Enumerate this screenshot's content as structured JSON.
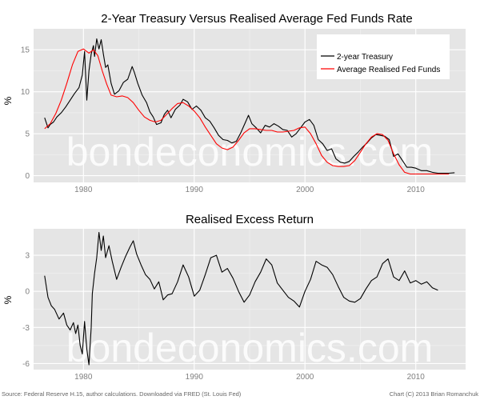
{
  "watermark": "bondeconomics.com",
  "footer": {
    "source": "Source: Federal Reserve H.15, author calculations. Downloaded via FRED (St. Louis Fed)",
    "credit": "Chart (C) 2013 Brian Romanchuk"
  },
  "colors": {
    "panel_bg": "#e5e5e5",
    "grid_major": "#ffffff",
    "grid_minor": "#f2f2f2",
    "series_black": "#000000",
    "series_red": "#ff0000",
    "watermark": "#ffffff"
  },
  "chart_data": [
    {
      "type": "line",
      "title": "2-Year Treasury Versus Realised Average Fed Funds Rate",
      "xlabel": "",
      "ylabel": "%",
      "xlim": [
        1975.5,
        2014.5
      ],
      "ylim": [
        -0.8,
        17.5
      ],
      "x_ticks": [
        1980,
        1990,
        2000,
        2010
      ],
      "y_ticks": [
        0,
        5,
        10,
        15
      ],
      "grid": true,
      "legend_position": "top-right",
      "series": [
        {
          "name": "2-year Treasury",
          "color": "#000000",
          "x": [
            1976.5,
            1976.8,
            1977.0,
            1977.3,
            1977.6,
            1978.0,
            1978.4,
            1978.8,
            1979.2,
            1979.6,
            1979.9,
            1980.1,
            1980.3,
            1980.5,
            1980.7,
            1980.9,
            1981.0,
            1981.2,
            1981.4,
            1981.6,
            1981.8,
            1982.0,
            1982.2,
            1982.5,
            1982.8,
            1983.2,
            1983.6,
            1984.0,
            1984.4,
            1984.6,
            1984.9,
            1985.3,
            1985.7,
            1986.0,
            1986.3,
            1986.6,
            1987.0,
            1987.3,
            1987.6,
            1987.9,
            1988.3,
            1988.7,
            1989.0,
            1989.4,
            1989.8,
            1990.2,
            1990.6,
            1991.0,
            1991.4,
            1991.8,
            1992.2,
            1992.6,
            1993.0,
            1993.4,
            1993.8,
            1994.2,
            1994.6,
            1994.9,
            1995.2,
            1995.6,
            1996.0,
            1996.4,
            1996.8,
            1997.2,
            1997.6,
            1998.0,
            1998.4,
            1998.8,
            1999.2,
            1999.6,
            2000.0,
            2000.4,
            2000.8,
            2001.2,
            2001.6,
            2002.0,
            2002.4,
            2002.8,
            2003.2,
            2003.6,
            2004.0,
            2004.4,
            2004.8,
            2005.2,
            2005.6,
            2006.0,
            2006.4,
            2006.8,
            2007.2,
            2007.6,
            2008.0,
            2008.4,
            2008.8,
            2009.2,
            2009.6,
            2010.0,
            2010.5,
            2011.0,
            2011.5,
            2012.0,
            2012.5,
            2013.0,
            2013.5
          ],
          "y": [
            6.9,
            5.7,
            6.1,
            6.4,
            7.0,
            7.5,
            8.2,
            9.0,
            9.8,
            10.5,
            12.0,
            14.8,
            9.0,
            12.5,
            14.5,
            15.5,
            14.2,
            16.3,
            15.1,
            16.2,
            14.5,
            12.9,
            13.2,
            11.0,
            9.7,
            10.1,
            11.1,
            11.5,
            13.0,
            12.3,
            11.0,
            9.6,
            8.7,
            7.6,
            7.0,
            6.1,
            6.3,
            7.3,
            7.8,
            6.9,
            7.9,
            8.4,
            9.1,
            8.8,
            7.9,
            8.3,
            7.8,
            6.9,
            6.5,
            5.7,
            4.8,
            4.3,
            4.2,
            3.9,
            4.1,
            5.1,
            6.3,
            7.2,
            6.2,
            5.7,
            5.1,
            6.0,
            5.8,
            6.2,
            5.9,
            5.5,
            5.4,
            4.6,
            5.0,
            5.7,
            6.4,
            6.7,
            6.0,
            4.3,
            3.8,
            3.0,
            3.2,
            2.0,
            1.6,
            1.5,
            1.7,
            2.3,
            2.8,
            3.4,
            3.9,
            4.5,
            4.9,
            4.8,
            4.7,
            4.3,
            2.3,
            2.6,
            1.8,
            1.0,
            1.0,
            0.9,
            0.6,
            0.6,
            0.4,
            0.3,
            0.3,
            0.3,
            0.35
          ]
        },
        {
          "name": "Average Realised Fed Funds",
          "color": "#ff0000",
          "x": [
            1976.5,
            1977.0,
            1977.5,
            1978.0,
            1978.5,
            1979.0,
            1979.5,
            1980.0,
            1980.5,
            1980.9,
            1981.3,
            1981.7,
            1982.1,
            1982.5,
            1983.0,
            1983.5,
            1984.0,
            1984.5,
            1985.0,
            1985.5,
            1986.0,
            1986.5,
            1987.0,
            1987.5,
            1988.0,
            1988.5,
            1989.0,
            1989.5,
            1990.0,
            1990.5,
            1991.0,
            1991.5,
            1992.0,
            1992.5,
            1993.0,
            1993.5,
            1994.0,
            1994.5,
            1995.0,
            1995.5,
            1996.0,
            1996.5,
            1997.0,
            1997.5,
            1998.0,
            1998.5,
            1999.0,
            1999.5,
            2000.0,
            2000.5,
            2001.0,
            2001.5,
            2002.0,
            2002.5,
            2003.0,
            2003.5,
            2004.0,
            2004.5,
            2005.0,
            2005.5,
            2006.0,
            2006.5,
            2007.0,
            2007.5,
            2008.0,
            2008.5,
            2009.0,
            2009.5,
            2010.0,
            2011.0,
            2012.0,
            2013.0
          ],
          "y": [
            5.6,
            6.2,
            7.4,
            9.0,
            11.0,
            13.2,
            14.8,
            15.1,
            14.6,
            15.0,
            14.3,
            12.5,
            10.9,
            9.6,
            9.4,
            9.5,
            9.3,
            8.7,
            7.8,
            7.0,
            6.6,
            6.4,
            6.6,
            7.3,
            8.0,
            8.6,
            8.7,
            8.3,
            7.7,
            6.9,
            5.8,
            4.8,
            3.8,
            3.3,
            3.1,
            3.4,
            4.2,
            5.1,
            5.6,
            5.6,
            5.5,
            5.4,
            5.4,
            5.2,
            5.2,
            5.3,
            5.4,
            5.7,
            5.8,
            5.0,
            3.8,
            2.4,
            1.6,
            1.2,
            1.1,
            1.1,
            1.2,
            1.8,
            2.8,
            3.8,
            4.6,
            5.0,
            4.9,
            4.2,
            2.6,
            1.3,
            0.4,
            0.2,
            0.2,
            0.2,
            0.2,
            0.2
          ]
        }
      ]
    },
    {
      "type": "line",
      "title": "Realised Excess Return",
      "xlabel": "",
      "ylabel": "%",
      "xlim": [
        1975.5,
        2014.5
      ],
      "ylim": [
        -6.5,
        5.2
      ],
      "x_ticks": [
        1980,
        1990,
        2000,
        2010
      ],
      "y_ticks": [
        -6,
        -3,
        0,
        3
      ],
      "grid": true,
      "series": [
        {
          "name": "",
          "color": "#000000",
          "x": [
            1976.5,
            1976.8,
            1977.1,
            1977.4,
            1977.8,
            1978.2,
            1978.5,
            1978.8,
            1979.1,
            1979.3,
            1979.5,
            1979.7,
            1979.9,
            1980.1,
            1980.3,
            1980.5,
            1980.7,
            1980.8,
            1981.0,
            1981.2,
            1981.4,
            1981.6,
            1981.8,
            1982.0,
            1982.3,
            1982.6,
            1983.0,
            1983.4,
            1983.8,
            1984.2,
            1984.5,
            1984.8,
            1985.2,
            1985.6,
            1986.0,
            1986.4,
            1986.8,
            1987.2,
            1987.6,
            1988.0,
            1988.5,
            1989.0,
            1989.5,
            1990.0,
            1990.5,
            1991.0,
            1991.5,
            1992.0,
            1992.5,
            1993.0,
            1993.5,
            1994.0,
            1994.5,
            1995.0,
            1995.5,
            1996.0,
            1996.5,
            1997.0,
            1997.5,
            1998.0,
            1998.5,
            1999.0,
            1999.5,
            2000.0,
            2000.5,
            2001.0,
            2001.5,
            2002.0,
            2002.5,
            2003.0,
            2003.5,
            2004.0,
            2004.5,
            2005.0,
            2005.5,
            2006.0,
            2006.5,
            2007.0,
            2007.5,
            2008.0,
            2008.5,
            2009.0,
            2009.5,
            2010.0,
            2010.5,
            2011.0,
            2011.5,
            2012.0
          ],
          "y": [
            1.3,
            -0.5,
            -1.2,
            -1.5,
            -2.3,
            -1.8,
            -2.8,
            -3.2,
            -2.6,
            -3.5,
            -2.8,
            -4.5,
            -5.2,
            -2.5,
            -4.8,
            -6.1,
            -3.0,
            -0.2,
            1.5,
            2.8,
            4.9,
            3.4,
            4.6,
            2.8,
            3.8,
            2.5,
            1.0,
            2.0,
            2.9,
            3.7,
            4.2,
            3.1,
            2.2,
            1.4,
            1.0,
            0.2,
            0.8,
            -0.7,
            -0.3,
            -0.2,
            0.8,
            2.2,
            1.2,
            -0.4,
            0.1,
            1.4,
            2.8,
            3.0,
            1.6,
            1.9,
            1.1,
            0.0,
            -0.9,
            -0.3,
            0.8,
            1.6,
            2.7,
            2.2,
            0.7,
            0.1,
            -0.5,
            -0.8,
            -1.3,
            0.0,
            1.0,
            2.5,
            2.2,
            2.0,
            1.4,
            0.4,
            -0.5,
            -0.8,
            -0.9,
            -0.6,
            0.2,
            0.9,
            1.2,
            2.3,
            2.7,
            1.2,
            0.9,
            1.7,
            0.7,
            0.9,
            0.6,
            0.8,
            0.3,
            0.1
          ]
        }
      ]
    }
  ]
}
